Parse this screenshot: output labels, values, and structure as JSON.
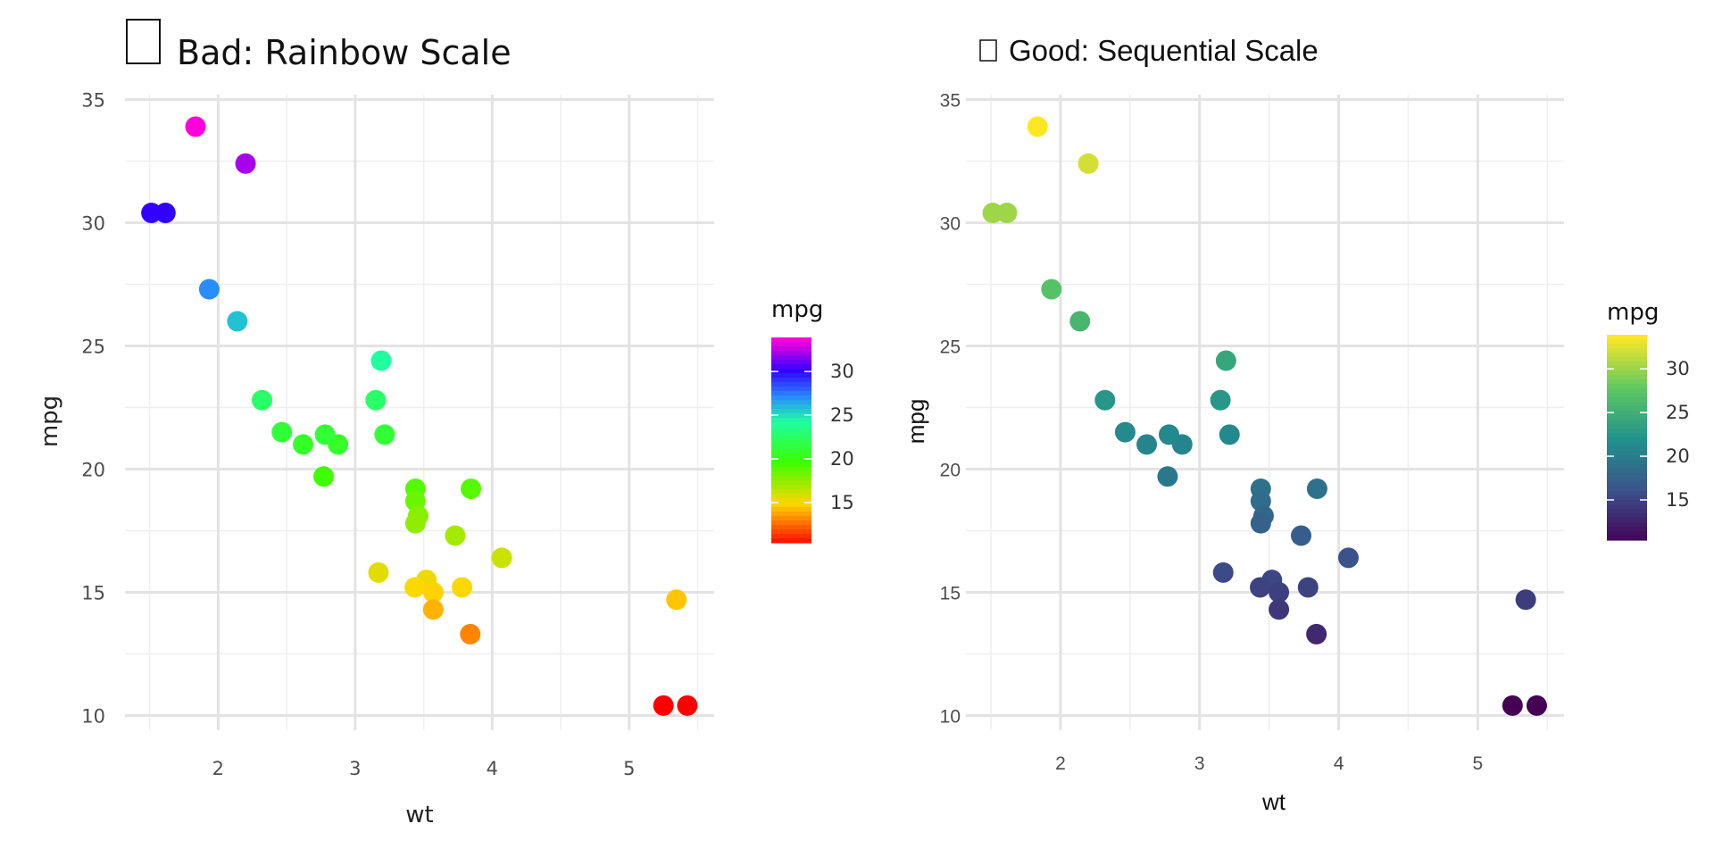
{
  "chart_data": [
    {
      "type": "scatter",
      "title": "Bad: Rainbow Scale",
      "title_icon": "missing-glyph-box",
      "xlabel": "wt",
      "ylabel": "mpg",
      "xlim": [
        1.32,
        5.62
      ],
      "ylim": [
        9.4,
        35.2
      ],
      "x_ticks": [
        2,
        3,
        4,
        5
      ],
      "y_ticks": [
        10,
        15,
        20,
        25,
        30,
        35
      ],
      "x_tick_labels": [
        "2",
        "3",
        "4",
        "5"
      ],
      "y_tick_labels": [
        "10",
        "15",
        "20",
        "25",
        "30",
        "35"
      ],
      "grid": true,
      "color_scale": "rainbow",
      "legend": {
        "title": "mpg",
        "position": "right",
        "range": [
          10.4,
          33.9
        ],
        "ticks": [
          15,
          20,
          25,
          30
        ],
        "tick_labels": [
          "15",
          "20",
          "25",
          "30"
        ]
      },
      "points": [
        {
          "x": 1.835,
          "y": 33.9
        },
        {
          "x": 2.2,
          "y": 32.4
        },
        {
          "x": 1.513,
          "y": 30.4
        },
        {
          "x": 1.615,
          "y": 30.4
        },
        {
          "x": 1.935,
          "y": 27.3
        },
        {
          "x": 2.14,
          "y": 26.0
        },
        {
          "x": 3.19,
          "y": 24.4
        },
        {
          "x": 2.32,
          "y": 22.8
        },
        {
          "x": 3.15,
          "y": 22.8
        },
        {
          "x": 2.465,
          "y": 21.5
        },
        {
          "x": 2.62,
          "y": 21.0
        },
        {
          "x": 2.875,
          "y": 21.0
        },
        {
          "x": 2.78,
          "y": 21.4
        },
        {
          "x": 3.215,
          "y": 21.4
        },
        {
          "x": 2.77,
          "y": 19.7
        },
        {
          "x": 3.44,
          "y": 19.2
        },
        {
          "x": 3.845,
          "y": 19.2
        },
        {
          "x": 3.44,
          "y": 18.7
        },
        {
          "x": 3.46,
          "y": 18.1
        },
        {
          "x": 3.44,
          "y": 17.8
        },
        {
          "x": 3.73,
          "y": 17.3
        },
        {
          "x": 4.07,
          "y": 16.4
        },
        {
          "x": 3.17,
          "y": 15.8
        },
        {
          "x": 3.52,
          "y": 15.5
        },
        {
          "x": 3.435,
          "y": 15.2
        },
        {
          "x": 3.78,
          "y": 15.2
        },
        {
          "x": 3.57,
          "y": 15.0
        },
        {
          "x": 5.345,
          "y": 14.7
        },
        {
          "x": 3.57,
          "y": 14.3
        },
        {
          "x": 3.84,
          "y": 13.3
        },
        {
          "x": 5.25,
          "y": 10.4
        },
        {
          "x": 5.424,
          "y": 10.4
        }
      ]
    },
    {
      "type": "scatter",
      "title": "Good: Sequential Scale",
      "title_icon": "missing-glyph-box",
      "xlabel": "wt",
      "ylabel": "mpg",
      "xlim": [
        1.32,
        5.62
      ],
      "ylim": [
        9.4,
        35.2
      ],
      "x_ticks": [
        2,
        3,
        4,
        5
      ],
      "y_ticks": [
        10,
        15,
        20,
        25,
        30,
        35
      ],
      "x_tick_labels": [
        "2",
        "3",
        "4",
        "5"
      ],
      "y_tick_labels": [
        "10",
        "15",
        "20",
        "25",
        "30",
        "35"
      ],
      "grid": true,
      "color_scale": "viridis",
      "legend": {
        "title": "mpg",
        "position": "right",
        "range": [
          10.4,
          33.9
        ],
        "ticks": [
          15,
          20,
          25,
          30
        ],
        "tick_labels": [
          "15",
          "20",
          "25",
          "30"
        ]
      },
      "points": [
        {
          "x": 1.835,
          "y": 33.9
        },
        {
          "x": 2.2,
          "y": 32.4
        },
        {
          "x": 1.513,
          "y": 30.4
        },
        {
          "x": 1.615,
          "y": 30.4
        },
        {
          "x": 1.935,
          "y": 27.3
        },
        {
          "x": 2.14,
          "y": 26.0
        },
        {
          "x": 3.19,
          "y": 24.4
        },
        {
          "x": 2.32,
          "y": 22.8
        },
        {
          "x": 3.15,
          "y": 22.8
        },
        {
          "x": 2.465,
          "y": 21.5
        },
        {
          "x": 2.62,
          "y": 21.0
        },
        {
          "x": 2.875,
          "y": 21.0
        },
        {
          "x": 2.78,
          "y": 21.4
        },
        {
          "x": 3.215,
          "y": 21.4
        },
        {
          "x": 2.77,
          "y": 19.7
        },
        {
          "x": 3.44,
          "y": 19.2
        },
        {
          "x": 3.845,
          "y": 19.2
        },
        {
          "x": 3.44,
          "y": 18.7
        },
        {
          "x": 3.46,
          "y": 18.1
        },
        {
          "x": 3.44,
          "y": 17.8
        },
        {
          "x": 3.73,
          "y": 17.3
        },
        {
          "x": 4.07,
          "y": 16.4
        },
        {
          "x": 3.17,
          "y": 15.8
        },
        {
          "x": 3.52,
          "y": 15.5
        },
        {
          "x": 3.435,
          "y": 15.2
        },
        {
          "x": 3.78,
          "y": 15.2
        },
        {
          "x": 3.57,
          "y": 15.0
        },
        {
          "x": 5.345,
          "y": 14.7
        },
        {
          "x": 3.57,
          "y": 14.3
        },
        {
          "x": 3.84,
          "y": 13.3
        },
        {
          "x": 5.25,
          "y": 10.4
        },
        {
          "x": 5.424,
          "y": 10.4
        }
      ]
    }
  ]
}
